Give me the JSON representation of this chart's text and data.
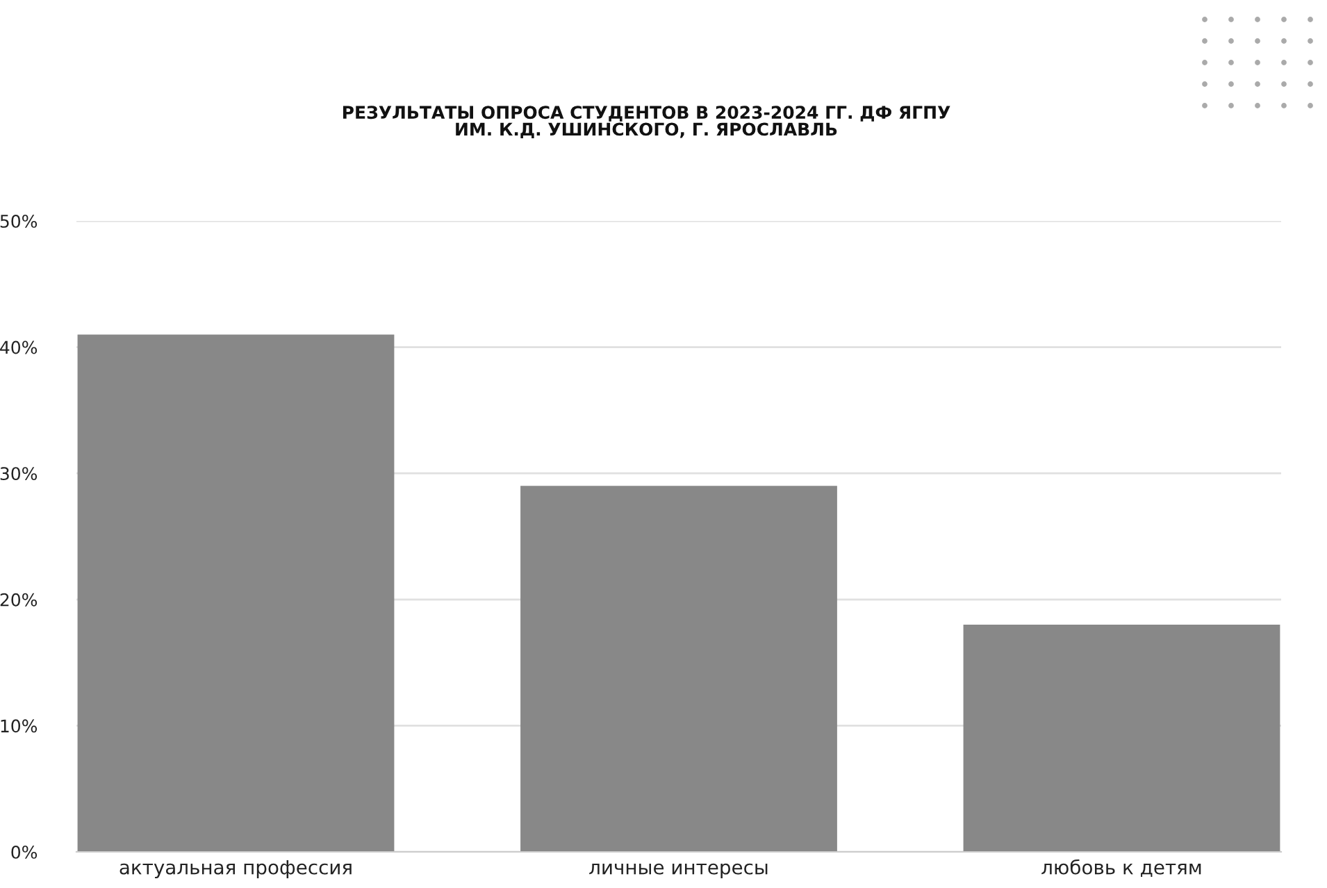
{
  "chart_data": {
    "type": "bar",
    "title": "РЕЗУЛЬТАТЫ ОПРОСА СТУДЕНТОВ В 2023-2024 ГГ. ДФ ЯГПУ\nИМ. К.Д. УШИНСКОГО, Г. ЯРОСЛАВЛЬ",
    "categories": [
      "актуальная профессия",
      "личные интересы",
      "любовь к детям"
    ],
    "values": [
      41,
      29,
      18
    ],
    "color": "#888888",
    "ylim": [
      0,
      50
    ],
    "yticks": [
      {
        "value": 0,
        "label": "0%"
      },
      {
        "value": 10,
        "label": "10%"
      },
      {
        "value": 20,
        "label": "20%"
      },
      {
        "value": 30,
        "label": "30%"
      },
      {
        "value": 40,
        "label": "40%"
      },
      {
        "value": 50,
        "label": "50%"
      }
    ],
    "grid": "y"
  }
}
